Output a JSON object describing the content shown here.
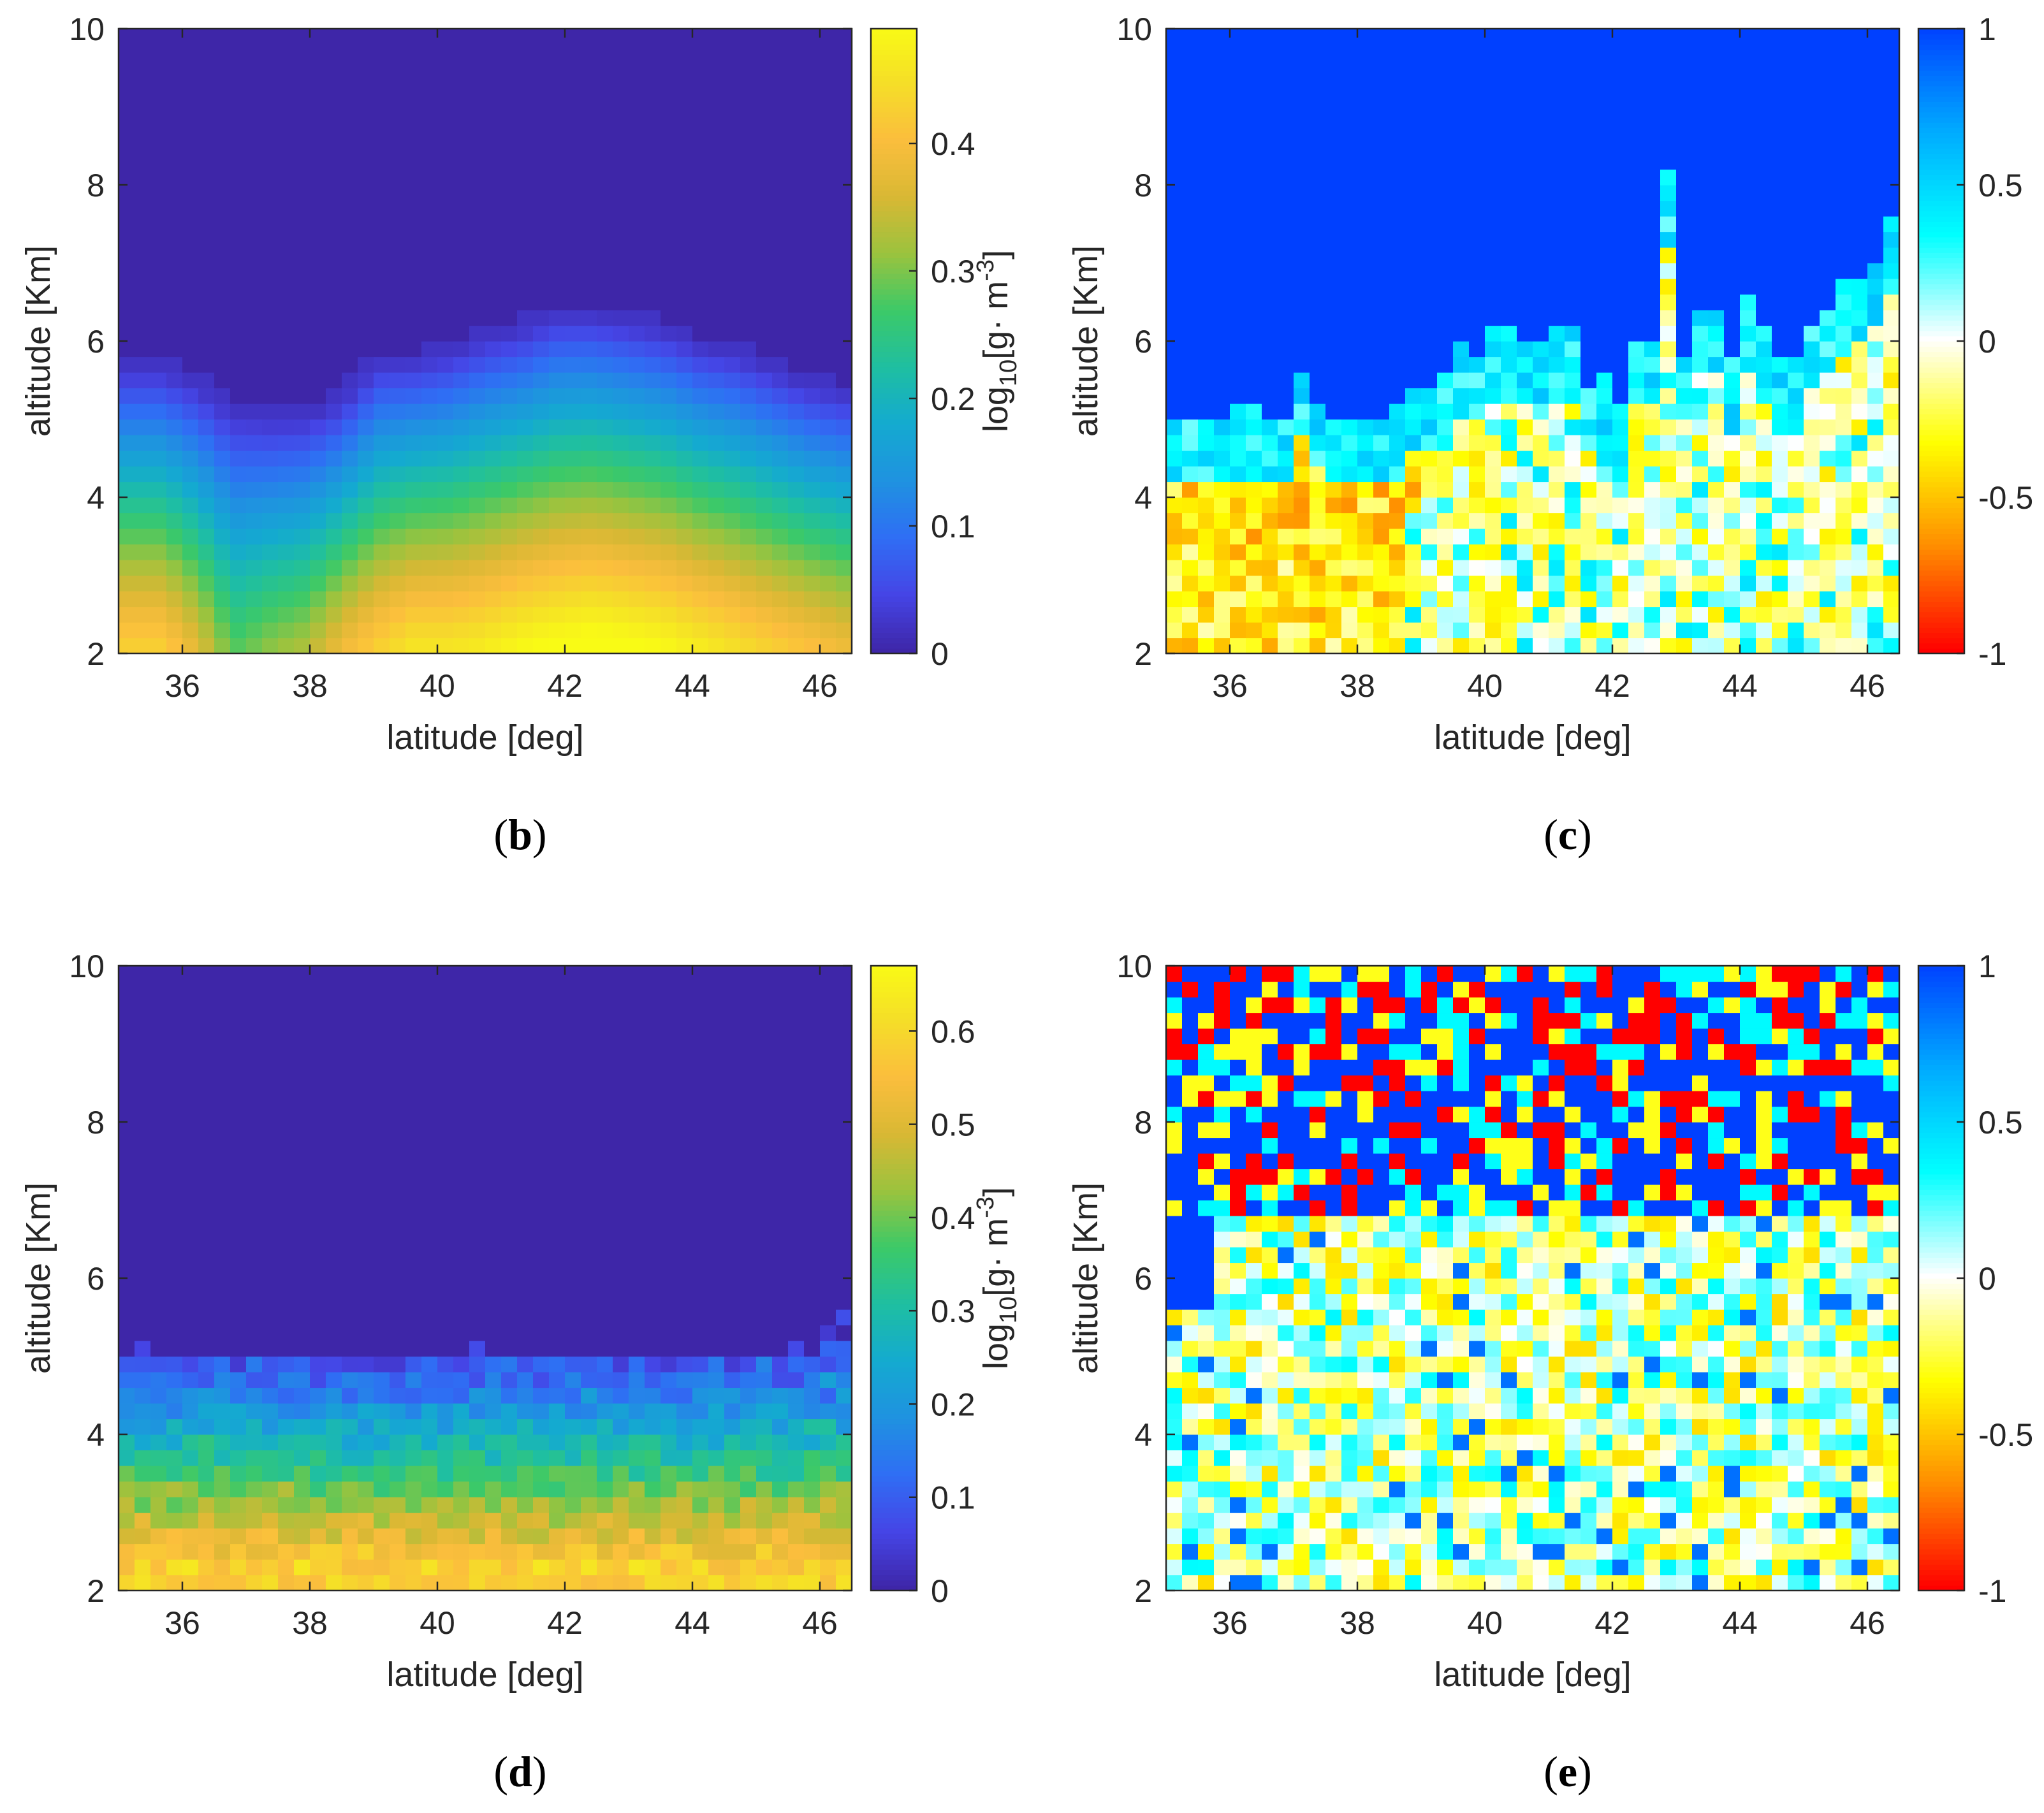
{
  "captions": {
    "b": "b",
    "c": "c",
    "d": "d",
    "e": "e"
  },
  "colors": {
    "parula": [
      "#3e26a8",
      "#4545e6",
      "#2f6ef4",
      "#1f92e0",
      "#14aad0",
      "#1fbfa1",
      "#3cc968",
      "#9bc33e",
      "#d9b834",
      "#fbbe3d",
      "#f5de28",
      "#f9fb15"
    ],
    "diverging": [
      "#ff0000",
      "#ff8c00",
      "#ffff00",
      "#ffffff",
      "#00ffff",
      "#00aaff",
      "#0040ff"
    ]
  },
  "chart_data": [
    {
      "id": "b",
      "type": "heatmap",
      "title": "",
      "xlabel": "latitude [deg]",
      "ylabel": "altitude [Km]",
      "xlim": [
        35,
        46.5
      ],
      "ylim": [
        2,
        10
      ],
      "xticks": [
        "36",
        "38",
        "40",
        "42",
        "44",
        "46"
      ],
      "yticks": [
        "2",
        "4",
        "6",
        "8",
        "10"
      ],
      "colorbar": {
        "label": "log10[g· m-3]",
        "base": "log",
        "sub": "10",
        "mid": "[g· m",
        "sup": "-3",
        "end": "]",
        "min": 0,
        "max": 0.49,
        "ticks": [
          "0",
          "0.1",
          "0.2",
          "0.3",
          "0.4"
        ],
        "tick_values": [
          0,
          0.1,
          0.2,
          0.3,
          0.4
        ],
        "colormap": "parula"
      },
      "top_km": [
        5.8,
        5.8,
        5.6,
        5.3,
        5.2,
        5.2,
        5.4,
        5.9,
        5.9,
        6.0,
        6.2,
        6.3,
        6.5,
        6.5,
        6.4,
        6.3,
        6.1,
        6.0,
        5.8,
        5.6,
        5.5
      ],
      "surface_value": [
        0.4,
        0.4,
        0.34,
        0.25,
        0.28,
        0.3,
        0.36,
        0.4,
        0.43,
        0.43,
        0.44,
        0.46,
        0.47,
        0.48,
        0.47,
        0.46,
        0.44,
        0.42,
        0.4,
        0.38,
        0.36
      ]
    },
    {
      "id": "c",
      "type": "heatmap",
      "title": "",
      "xlabel": "latitude [deg]",
      "ylabel": "altitude [Km]",
      "xlim": [
        35,
        46.5
      ],
      "ylim": [
        2,
        10
      ],
      "xticks": [
        "36",
        "38",
        "40",
        "42",
        "44",
        "46"
      ],
      "yticks": [
        "2",
        "4",
        "6",
        "8",
        "10"
      ],
      "colorbar": {
        "label": "",
        "min": -1,
        "max": 1,
        "ticks": [
          "-1",
          "-0.5",
          "0",
          "0.5",
          "1"
        ],
        "tick_values": [
          -1,
          -0.5,
          0,
          0.5,
          1
        ],
        "colormap": "diverging"
      },
      "boundary_km": [
        5.0,
        5.0,
        5.0,
        5.2,
        5.2,
        5.0,
        5.7,
        5.3,
        5.0,
        5.0,
        5.0,
        5.2,
        5.4,
        5.6,
        6.0,
        5.9,
        6.2,
        6.0,
        6.0,
        6.2,
        5.5,
        5.6,
        5.2,
        6.0,
        8.2,
        5.9,
        6.4,
        5.8,
        6.7,
        6.2,
        5.8,
        6.3,
        6.5,
        6.9,
        7.1,
        7.6
      ],
      "lower_value": -0.3
    },
    {
      "id": "d",
      "type": "heatmap",
      "title": "",
      "xlabel": "latitude [deg]",
      "ylabel": "altitude [Km]",
      "xlim": [
        35,
        46.5
      ],
      "ylim": [
        2,
        10
      ],
      "xticks": [
        "36",
        "38",
        "40",
        "42",
        "44",
        "46"
      ],
      "yticks": [
        "2",
        "4",
        "6",
        "8",
        "10"
      ],
      "colorbar": {
        "label": "log10[g· m-3]",
        "base": "log",
        "sub": "10",
        "mid": "[g· m",
        "sup": "-3",
        "end": "]",
        "min": 0,
        "max": 0.67,
        "ticks": [
          "0",
          "0.1",
          "0.2",
          "0.3",
          "0.4",
          "0.5",
          "0.6"
        ],
        "tick_values": [
          0,
          0.1,
          0.2,
          0.3,
          0.4,
          0.5,
          0.6
        ],
        "colormap": "parula"
      },
      "top_km": 5.0,
      "surface_value": 0.6
    },
    {
      "id": "e",
      "type": "heatmap",
      "title": "",
      "xlabel": "latitude [deg]",
      "ylabel": "altitude [Km]",
      "xlim": [
        35,
        46.5
      ],
      "ylim": [
        2,
        10
      ],
      "xticks": [
        "36",
        "38",
        "40",
        "42",
        "44",
        "46"
      ],
      "yticks": [
        "2",
        "4",
        "6",
        "8",
        "10"
      ],
      "colorbar": {
        "label": "",
        "min": -1,
        "max": 1,
        "ticks": [
          "-1",
          "-0.5",
          "0",
          "0.5",
          "1"
        ],
        "tick_values": [
          -1,
          -0.5,
          0,
          0.5,
          1
        ],
        "colormap": "diverging"
      },
      "noisy_above_km": 6.8
    }
  ]
}
